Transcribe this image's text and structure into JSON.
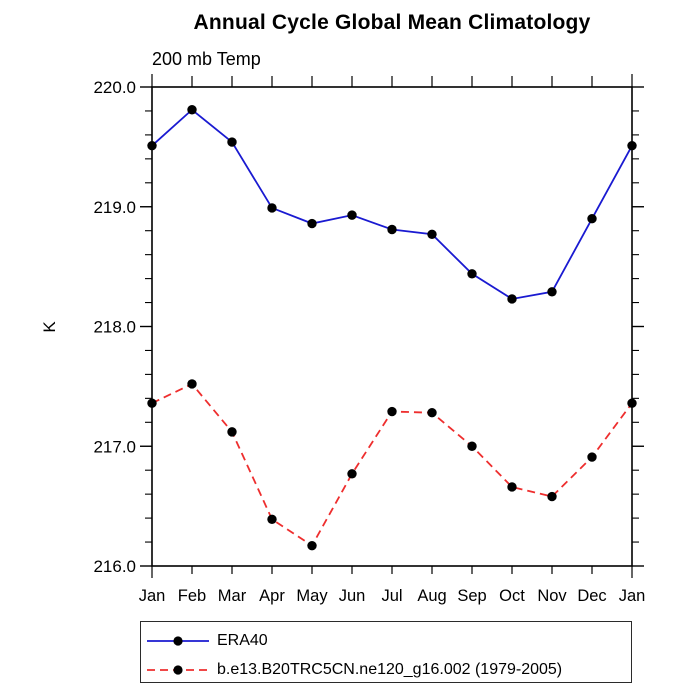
{
  "title": "Annual Cycle Global Mean Climatology",
  "subtitle": "200 mb Temp",
  "ylabel": "K",
  "colors": {
    "era40_line": "#1a1ad1",
    "model_line": "#ee2e2e",
    "marker": "#000000",
    "axis": "#000000"
  },
  "chart_data": {
    "type": "line",
    "title": "Annual Cycle Global Mean Climatology",
    "subtitle": "200 mb Temp",
    "ylabel": "K",
    "categories": [
      "Jan",
      "Feb",
      "Mar",
      "Apr",
      "May",
      "Jun",
      "Jul",
      "Aug",
      "Sep",
      "Oct",
      "Nov",
      "Dec",
      "Jan"
    ],
    "series": [
      {
        "name": "ERA40",
        "color": "#1a1ad1",
        "style": "solid",
        "marker": "filled-circle",
        "values": [
          219.51,
          219.81,
          219.54,
          218.99,
          218.86,
          218.93,
          218.81,
          218.77,
          218.44,
          218.23,
          218.29,
          218.9,
          219.51
        ]
      },
      {
        "name": "b.e13.B20TRC5CN.ne120_g16.002 (1979-2005)",
        "color": "#ee2e2e",
        "style": "dashed",
        "marker": "filled-circle",
        "values": [
          217.36,
          217.52,
          217.12,
          216.39,
          216.17,
          216.77,
          217.29,
          217.28,
          217.0,
          216.66,
          216.58,
          216.91,
          217.36
        ]
      }
    ],
    "ylim": [
      216.0,
      220.0
    ],
    "ytick_major": [
      216.0,
      217.0,
      218.0,
      219.0,
      220.0
    ],
    "ytick_labels": [
      "216.0",
      "217.0",
      "218.0",
      "219.0",
      "220.0"
    ],
    "ytick_minor_step": 0.2,
    "grid": false,
    "legend_position": "bottom-left-box"
  }
}
